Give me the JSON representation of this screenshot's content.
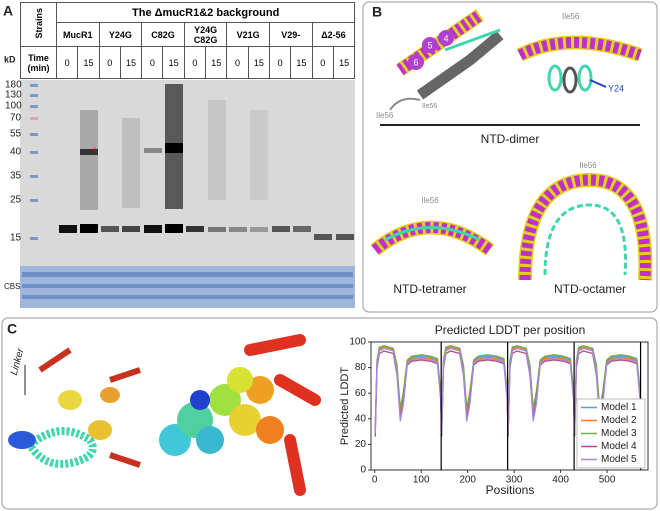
{
  "panel_a": {
    "label": "A",
    "strains_header": "Strains",
    "background": "The ΔmucR1&2 background",
    "strains": [
      "MucR1",
      "Y24G",
      "C82G",
      "Y24G C82G",
      "V21G",
      "V29-",
      "Δ2-56"
    ],
    "kd": "kD",
    "time_header": "Time (min)",
    "times": [
      "0",
      "15"
    ],
    "markers": [
      "180",
      "130",
      "100",
      "70",
      "55",
      "40",
      "35",
      "25",
      "15"
    ],
    "asterisk": "*",
    "cbs": "CBS"
  },
  "panel_b": {
    "label": "B",
    "ile": "Ile56",
    "y24": "Y24",
    "helix_numbers": [
      "6",
      "5",
      "4"
    ],
    "dimer": "NTD-dimer",
    "tetramer": "NTD-tetramer",
    "octamer": "NTD-octamer"
  },
  "panel_c": {
    "label": "C",
    "linker": "Linker"
  },
  "chart_data": {
    "type": "line",
    "title": "Predicted LDDT per position",
    "x_label": "Positions",
    "y_label": "Predicted LDDT",
    "x": [
      1,
      5,
      10,
      20,
      30,
      40,
      48,
      55,
      62,
      70,
      80,
      100,
      120,
      135,
      142,
      144,
      148,
      153,
      163,
      173,
      183,
      191,
      198,
      205,
      213,
      223,
      243,
      263,
      278,
      285,
      287,
      291,
      296,
      306,
      316,
      326,
      334,
      341,
      348,
      356,
      366,
      386,
      406,
      421,
      428,
      430,
      434,
      439,
      449,
      459,
      469,
      477,
      484,
      491,
      499,
      509,
      529,
      549,
      564,
      571
    ],
    "series": [
      {
        "name": "Model 1",
        "color": "#5b9bd5",
        "values": [
          30,
          85,
          95,
          97,
          96,
          95,
          80,
          45,
          60,
          85,
          88,
          89,
          88,
          86,
          60,
          30,
          85,
          95,
          97,
          96,
          95,
          80,
          45,
          60,
          85,
          88,
          89,
          88,
          86,
          60,
          30,
          85,
          95,
          97,
          96,
          95,
          80,
          45,
          60,
          85,
          88,
          89,
          88,
          86,
          60,
          30,
          85,
          95,
          97,
          96,
          95,
          80,
          45,
          60,
          85,
          88,
          89,
          88,
          86,
          60
        ]
      },
      {
        "name": "Model 2",
        "color": "#ed7d31",
        "values": [
          28,
          84,
          94,
          96,
          95,
          94,
          78,
          42,
          58,
          84,
          87,
          88,
          87,
          85,
          58,
          28,
          84,
          94,
          96,
          95,
          94,
          78,
          42,
          58,
          84,
          87,
          88,
          87,
          85,
          58,
          28,
          84,
          94,
          96,
          95,
          94,
          78,
          42,
          58,
          84,
          87,
          88,
          87,
          85,
          58,
          28,
          84,
          94,
          96,
          95,
          94,
          78,
          42,
          58,
          84,
          87,
          88,
          87,
          85,
          58
        ]
      },
      {
        "name": "Model 3",
        "color": "#70ad47",
        "values": [
          32,
          86,
          96,
          97,
          96,
          95,
          82,
          48,
          62,
          86,
          89,
          90,
          89,
          87,
          62,
          32,
          86,
          96,
          97,
          96,
          95,
          82,
          48,
          62,
          86,
          89,
          90,
          89,
          87,
          62,
          32,
          86,
          96,
          97,
          96,
          95,
          82,
          48,
          62,
          86,
          89,
          90,
          89,
          87,
          62,
          32,
          86,
          96,
          97,
          96,
          95,
          82,
          48,
          62,
          86,
          89,
          90,
          89,
          87,
          62
        ]
      },
      {
        "name": "Model 4",
        "color": "#b04a8c",
        "values": [
          26,
          80,
          91,
          93,
          92,
          91,
          74,
          40,
          55,
          82,
          85,
          86,
          85,
          83,
          55,
          26,
          80,
          91,
          93,
          92,
          91,
          74,
          40,
          55,
          82,
          85,
          86,
          85,
          83,
          55,
          26,
          80,
          91,
          93,
          92,
          91,
          74,
          40,
          55,
          82,
          85,
          86,
          85,
          83,
          55,
          26,
          80,
          91,
          93,
          92,
          91,
          74,
          40,
          55,
          82,
          85,
          86,
          85,
          83,
          55
        ]
      },
      {
        "name": "Model 5",
        "color": "#a68ad9",
        "values": [
          29,
          82,
          93,
          95,
          94,
          93,
          76,
          38,
          52,
          83,
          86,
          87,
          86,
          84,
          56,
          29,
          82,
          93,
          95,
          94,
          93,
          76,
          38,
          52,
          83,
          86,
          87,
          86,
          84,
          56,
          29,
          82,
          93,
          95,
          94,
          93,
          76,
          38,
          52,
          83,
          86,
          87,
          86,
          84,
          56,
          29,
          82,
          93,
          95,
          94,
          93,
          76,
          38,
          52,
          83,
          86,
          87,
          86,
          84,
          56
        ]
      }
    ],
    "vlines": [
      143,
      286,
      429,
      572
    ],
    "xlim": [
      -8,
      588
    ],
    "ylim": [
      0,
      100
    ],
    "xticks": [
      0,
      100,
      200,
      300,
      400,
      500
    ],
    "yticks": [
      0,
      20,
      40,
      60,
      80,
      100
    ],
    "grid": false,
    "legend": "lower right"
  }
}
